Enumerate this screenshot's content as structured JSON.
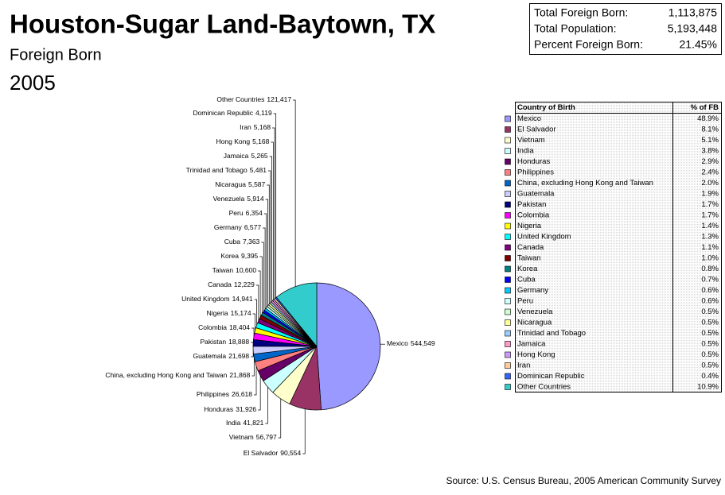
{
  "chart_data": {
    "type": "pie",
    "title": "Houston-Sugar Land-Baytown, TX",
    "subtitle": "Foreign Born",
    "year_label": "2005",
    "source": "Source: U.S. Census Bureau, 2005 American Community Survey",
    "summary": [
      {
        "label": "Total Foreign Born:",
        "value": "1,113,875"
      },
      {
        "label": "Total Population:",
        "value": "5,193,448"
      },
      {
        "label": "Percent Foreign Born:",
        "value": "21.45%"
      }
    ],
    "categories": [
      "Mexico",
      "El Salvador",
      "Vietnam",
      "India",
      "Honduras",
      "Philippines",
      "China, excluding Hong Kong and Taiwan",
      "Guatemala",
      "Pakistan",
      "Colombia",
      "Nigeria",
      "United Kingdom",
      "Canada",
      "Taiwan",
      "Korea",
      "Cuba",
      "Germany",
      "Peru",
      "Venezuela",
      "Nicaragua",
      "Trinidad and Tobago",
      "Jamaica",
      "Hong Kong",
      "Iran",
      "Dominican Republic",
      "Other Countries"
    ],
    "values": [
      544549,
      90554,
      56797,
      41821,
      31926,
      26618,
      21868,
      21698,
      18888,
      18404,
      15174,
      14941,
      12229,
      10600,
      9395,
      7363,
      6577,
      6354,
      5914,
      5587,
      5481,
      5265,
      5168,
      5168,
      4119,
      121417
    ],
    "value_labels": [
      "544,549",
      "90,554",
      "56,797",
      "41,821",
      "31,926",
      "26,618",
      "21,868",
      "21,698",
      "18,888",
      "18,404",
      "15,174",
      "14,941",
      "12,229",
      "10,600",
      "9,395",
      "7,363",
      "6,577",
      "6,354",
      "5,914",
      "5,587",
      "5,481",
      "5,265",
      "5,168",
      "5,168",
      "4,119",
      "121,417"
    ],
    "colors": [
      "#9999ff",
      "#993366",
      "#ffffcc",
      "#ccffff",
      "#660066",
      "#ff8080",
      "#0066cc",
      "#ccccff",
      "#000080",
      "#ff00ff",
      "#ffff00",
      "#00ffff",
      "#800080",
      "#800000",
      "#008080",
      "#0000ff",
      "#00ccff",
      "#ccffff",
      "#ccffcc",
      "#ffff99",
      "#99ccff",
      "#ff99cc",
      "#cc99ff",
      "#ffcc99",
      "#3366ff",
      "#33cccc"
    ],
    "table": {
      "header": [
        "Country of Birth",
        "% of FB"
      ],
      "percent_labels": [
        "48.9%",
        "8.1%",
        "5.1%",
        "3.8%",
        "2.9%",
        "2.4%",
        "2.0%",
        "1.9%",
        "1.7%",
        "1.7%",
        "1.4%",
        "1.3%",
        "1.1%",
        "1.0%",
        "0.8%",
        "0.7%",
        "0.6%",
        "0.6%",
        "0.5%",
        "0.5%",
        "0.5%",
        "0.5%",
        "0.5%",
        "0.5%",
        "0.4%",
        "10.9%"
      ]
    }
  }
}
